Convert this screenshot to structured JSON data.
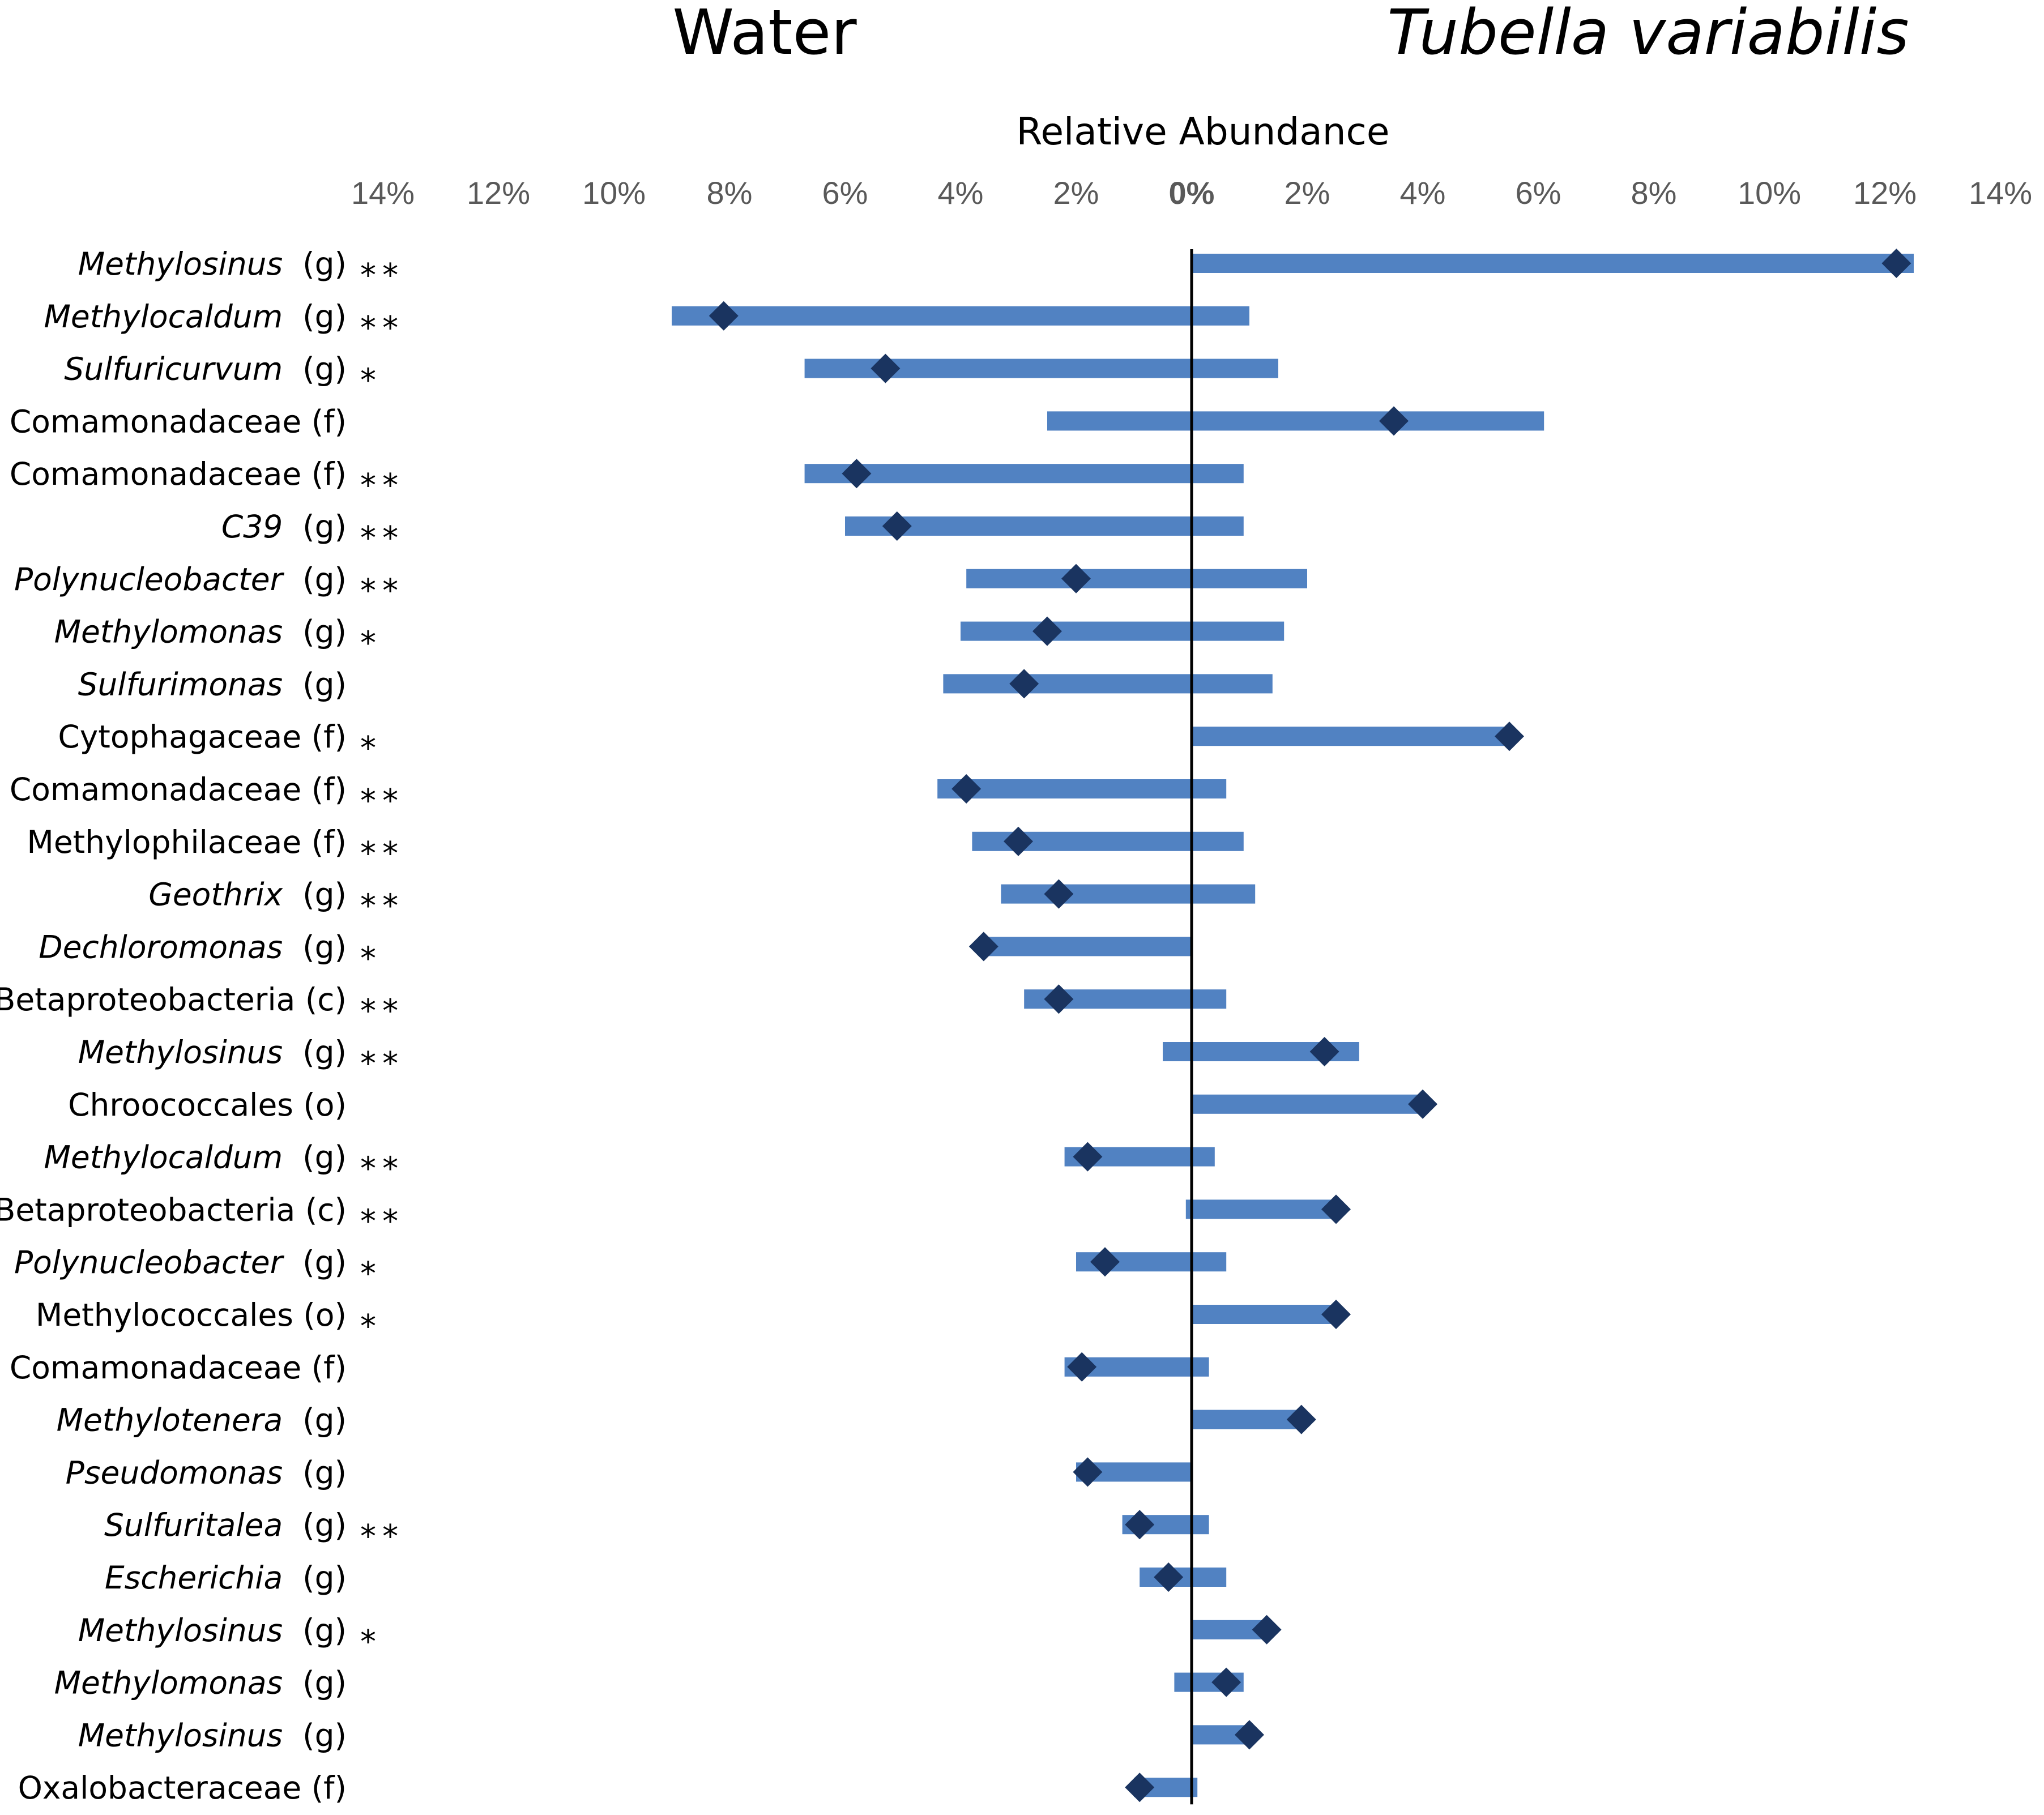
{
  "chart_data": {
    "type": "bar",
    "subtype": "diverging-range-with-markers",
    "group_titles": {
      "left": "Water",
      "right": "Tubella variabilis"
    },
    "axis_title": "Relative Abundance",
    "xlim": [
      -14,
      14
    ],
    "units": "percent",
    "tick_values": [
      -14,
      -12,
      -10,
      -8,
      -6,
      -4,
      -2,
      0,
      2,
      4,
      6,
      8,
      10,
      12,
      14
    ],
    "tick_labels": [
      "14%",
      "12%",
      "10%",
      "8%",
      "6%",
      "4%",
      "2%",
      "0%",
      "2%",
      "4%",
      "6%",
      "8%",
      "10%",
      "12%",
      "14%"
    ],
    "bar_color": "#5182c2",
    "marker_color": "#1a3460",
    "rows": [
      {
        "name": "Methylosinus",
        "rank": "(g)",
        "italic": true,
        "sig": "**",
        "bar": [
          0.0,
          12.5
        ],
        "marker": 12.2
      },
      {
        "name": "Methylocaldum",
        "rank": "(g)",
        "italic": true,
        "sig": "**",
        "bar": [
          -9.0,
          1.0
        ],
        "marker": -8.1
      },
      {
        "name": "Sulfuricurvum",
        "rank": "(g)",
        "italic": true,
        "sig": "*",
        "bar": [
          -6.7,
          1.5
        ],
        "marker": -5.3
      },
      {
        "name": "Comamonadaceae",
        "rank": "(f)",
        "italic": false,
        "sig": "",
        "bar": [
          -2.5,
          6.1
        ],
        "marker": 3.5
      },
      {
        "name": "Comamonadaceae",
        "rank": "(f)",
        "italic": false,
        "sig": "**",
        "bar": [
          -6.7,
          0.9
        ],
        "marker": -5.8
      },
      {
        "name": "C39",
        "rank": "(g)",
        "italic": true,
        "sig": "**",
        "bar": [
          -6.0,
          0.9
        ],
        "marker": -5.1
      },
      {
        "name": "Polynucleobacter",
        "rank": "(g)",
        "italic": true,
        "sig": "**",
        "bar": [
          -3.9,
          2.0
        ],
        "marker": -2.0
      },
      {
        "name": "Methylomonas",
        "rank": "(g)",
        "italic": true,
        "sig": "*",
        "bar": [
          -4.0,
          1.6
        ],
        "marker": -2.5
      },
      {
        "name": "Sulfurimonas",
        "rank": "(g)",
        "italic": true,
        "sig": "",
        "bar": [
          -4.3,
          1.4
        ],
        "marker": -2.9
      },
      {
        "name": "Cytophagaceae",
        "rank": "(f)",
        "italic": false,
        "sig": "*",
        "bar": [
          0.0,
          5.5
        ],
        "marker": 5.5
      },
      {
        "name": "Comamonadaceae",
        "rank": "(f)",
        "italic": false,
        "sig": "**",
        "bar": [
          -4.4,
          0.6
        ],
        "marker": -3.9
      },
      {
        "name": "Methylophilaceae",
        "rank": "(f)",
        "italic": false,
        "sig": "**",
        "bar": [
          -3.8,
          0.9
        ],
        "marker": -3.0
      },
      {
        "name": "Geothrix",
        "rank": "(g)",
        "italic": true,
        "sig": "**",
        "bar": [
          -3.3,
          1.1
        ],
        "marker": -2.3
      },
      {
        "name": "Dechloromonas",
        "rank": "(g)",
        "italic": true,
        "sig": "*",
        "bar": [
          -3.6,
          0.0
        ],
        "marker": -3.6
      },
      {
        "name": "Betaproteobacteria",
        "rank": "(c)",
        "italic": false,
        "sig": "**",
        "bar": [
          -2.9,
          0.6
        ],
        "marker": -2.3
      },
      {
        "name": "Methylosinus",
        "rank": "(g)",
        "italic": true,
        "sig": "**",
        "bar": [
          -0.5,
          2.9
        ],
        "marker": 2.3
      },
      {
        "name": "Chroococcales",
        "rank": "(o)",
        "italic": false,
        "sig": "",
        "bar": [
          0.0,
          4.0
        ],
        "marker": 4.0
      },
      {
        "name": "Methylocaldum",
        "rank": "(g)",
        "italic": true,
        "sig": "**",
        "bar": [
          -2.2,
          0.4
        ],
        "marker": -1.8
      },
      {
        "name": "Betaproteobacteria",
        "rank": "(c)",
        "italic": false,
        "sig": "**",
        "bar": [
          -0.1,
          2.5
        ],
        "marker": 2.5
      },
      {
        "name": "Polynucleobacter",
        "rank": "(g)",
        "italic": true,
        "sig": "*",
        "bar": [
          -2.0,
          0.6
        ],
        "marker": -1.5
      },
      {
        "name": "Methylococcales",
        "rank": "(o)",
        "italic": false,
        "sig": "*",
        "bar": [
          0.0,
          2.5
        ],
        "marker": 2.5
      },
      {
        "name": "Comamonadaceae",
        "rank": "(f)",
        "italic": false,
        "sig": "",
        "bar": [
          -2.2,
          0.3
        ],
        "marker": -1.9
      },
      {
        "name": "Methylotenera",
        "rank": "(g)",
        "italic": true,
        "sig": "",
        "bar": [
          0.0,
          1.9
        ],
        "marker": 1.9
      },
      {
        "name": "Pseudomonas",
        "rank": "(g)",
        "italic": true,
        "sig": "",
        "bar": [
          -2.0,
          0.0
        ],
        "marker": -1.8
      },
      {
        "name": "Sulfuritalea",
        "rank": "(g)",
        "italic": true,
        "sig": "**",
        "bar": [
          -1.2,
          0.3
        ],
        "marker": -0.9
      },
      {
        "name": "Escherichia",
        "rank": "(g)",
        "italic": true,
        "sig": "",
        "bar": [
          -0.9,
          0.6
        ],
        "marker": -0.4
      },
      {
        "name": "Methylosinus",
        "rank": "(g)",
        "italic": true,
        "sig": "*",
        "bar": [
          0.0,
          1.3
        ],
        "marker": 1.3
      },
      {
        "name": "Methylomonas",
        "rank": "(g)",
        "italic": true,
        "sig": "",
        "bar": [
          -0.3,
          0.9
        ],
        "marker": 0.6
      },
      {
        "name": "Methylosinus",
        "rank": "(g)",
        "italic": true,
        "sig": "",
        "bar": [
          0.0,
          1.0
        ],
        "marker": 1.0
      },
      {
        "name": "Oxalobacteraceae",
        "rank": "(f)",
        "italic": false,
        "sig": "",
        "bar": [
          -1.0,
          0.1
        ],
        "marker": -0.9
      }
    ]
  }
}
